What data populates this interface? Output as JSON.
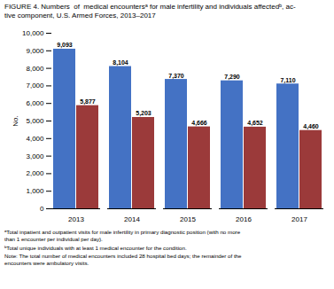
{
  "chart_data": {
    "type": "bar",
    "title": "FIGURE 4. Numbers  of  medical encountersᵃ for male infertility and individuals affectedᵇ, ac-\ntive component, U.S. Armed Forces, 2013–2017",
    "ylabel": "No.",
    "categories": [
      "2013",
      "2014",
      "2015",
      "2016",
      "2017"
    ],
    "series": [
      {
        "color": "#4472C4",
        "values": [
          9093,
          8104,
          7370,
          7290,
          7110
        ],
        "value_labels": [
          "9,093",
          "8,104",
          "7,370",
          "7,290",
          "7,110"
        ]
      },
      {
        "color": "#9B3A3A",
        "values": [
          5877,
          5203,
          4666,
          4652,
          4460
        ],
        "value_labels": [
          "5,877",
          "5,203",
          "4,666",
          "4,652",
          "4,460"
        ]
      }
    ],
    "ylim": [
      0,
      10000
    ],
    "yticks": [
      0,
      {
        "value": 1000,
        "label": "1,000"
      },
      {
        "value": 2000,
        "label": "2,000"
      },
      {
        "value": 3000,
        "label": "3,000"
      },
      {
        "value": 4000,
        "label": "4,000"
      },
      {
        "value": 5000,
        "label": "5,000"
      },
      {
        "value": 6000,
        "label": "6,000"
      },
      {
        "value": 7000,
        "label": "7,000"
      },
      {
        "value": 8000,
        "label": "8,000"
      },
      {
        "value": 9000,
        "label": "9,000"
      },
      {
        "value": 10000,
        "label": "10,000"
      }
    ],
    "data_labels": true,
    "grid": false,
    "annotations": [
      "ᵃTotal inpatient and outpatient visits for male infertility in primary diagnostic position (with no more\nthan 1 encounter per individual per day).",
      "ᵇTotal unique individuals with at least 1 medical encounter for the condition.",
      "Note: The total number of medical encounters included 28 hospital bed days; the remainder of the\nencounters were ambulatory visits."
    ]
  }
}
